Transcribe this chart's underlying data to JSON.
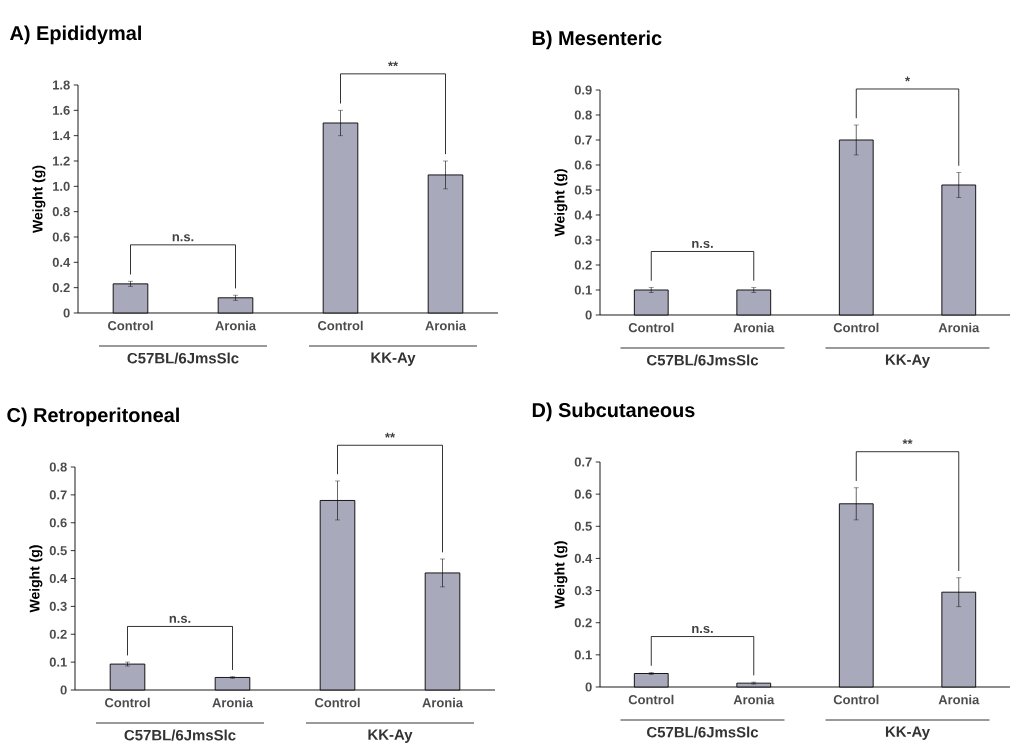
{
  "chart_data": [
    {
      "type": "bar",
      "title": "A) Epididymal",
      "ylabel": "Weight (g)",
      "categories": [
        "Control",
        "Aronia",
        "Control",
        "Aronia"
      ],
      "values": [
        0.23,
        0.12,
        1.5,
        1.09
      ],
      "errors": [
        0.02,
        0.02,
        0.1,
        0.11
      ],
      "color": "#a9a9bc",
      "ylim": [
        0,
        1.8
      ],
      "yticks": [
        0,
        0.2,
        0.4,
        0.6,
        0.8,
        {
          "value": 1,
          "label": "1.0"
        },
        1.2,
        1.4,
        1.6,
        1.8
      ],
      "annotations": [
        "n.s.",
        "**",
        "C57BL/6JmsSlc",
        "KK-Ay"
      ]
    },
    {
      "type": "bar",
      "title": "B) Mesenteric",
      "ylabel": "Weight (g)",
      "categories": [
        "Control",
        "Aronia",
        "Control",
        "Aronia"
      ],
      "values": [
        0.1,
        0.1,
        0.7,
        0.52
      ],
      "errors": [
        0.01,
        0.01,
        0.06,
        0.05
      ],
      "color": "#a9a9bc",
      "ylim": [
        0,
        0.9
      ],
      "yticks": [
        0,
        0.1,
        0.2,
        0.3,
        0.4,
        0.5,
        0.6,
        0.7,
        0.8,
        0.9
      ],
      "annotations": [
        "n.s.",
        "*",
        "C57BL/6JmsSlc",
        "KK-Ay"
      ]
    },
    {
      "type": "bar",
      "title": "C) Retroperitoneal",
      "ylabel": "Weight (g)",
      "categories": [
        "Control",
        "Aronia",
        "Control",
        "Aronia"
      ],
      "values": [
        0.093,
        0.045,
        0.68,
        0.42
      ],
      "errors": [
        0.007,
        0.003,
        0.07,
        0.05
      ],
      "color": "#a9a9bc",
      "ylim": [
        0,
        0.8
      ],
      "yticks": [
        0,
        0.1,
        0.2,
        0.3,
        0.4,
        0.5,
        0.6,
        0.7,
        0.8
      ],
      "annotations": [
        "n.s.",
        "**",
        "C57BL/6JmsSlc",
        "KK-Ay"
      ]
    },
    {
      "type": "bar",
      "title": "D) Subcutaneous",
      "ylabel": "Weight (g)",
      "categories": [
        "Control",
        "Aronia",
        "Control",
        "Aronia"
      ],
      "values": [
        0.042,
        0.012,
        0.57,
        0.295
      ],
      "errors": [
        0.003,
        0.003,
        0.05,
        0.045
      ],
      "color": "#a9a9bc",
      "ylim": [
        0,
        0.7
      ],
      "yticks": [
        0,
        0.1,
        0.2,
        0.3,
        0.4,
        0.5,
        0.6,
        0.7
      ],
      "annotations": [
        "n.s.",
        "**",
        "C57BL/6JmsSlc",
        "KK-Ay"
      ]
    }
  ]
}
